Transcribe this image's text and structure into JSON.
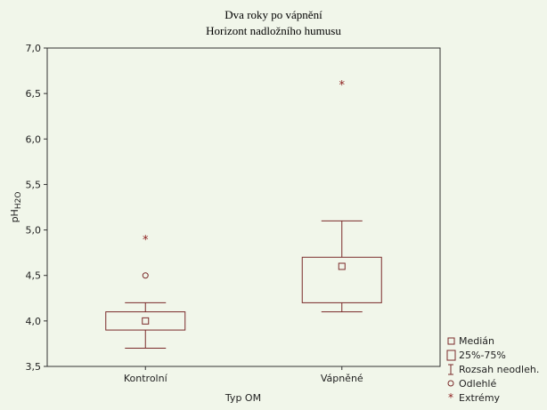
{
  "chart_data": {
    "type": "box",
    "title_line1": "Dva roky po vápnění",
    "title_line2": "Horizont nadložního humusu",
    "ylabel": {
      "base": "pH",
      "sub": "H2O"
    },
    "xlabel": "Typ OM",
    "ylim": [
      3.5,
      7.0
    ],
    "yticks": [
      3.5,
      4.0,
      4.5,
      5.0,
      5.5,
      6.0,
      6.5,
      7.0
    ],
    "ytick_labels": [
      "3,5",
      "4,0",
      "4,5",
      "5,0",
      "5,5",
      "6,0",
      "6,5",
      "7,0"
    ],
    "categories": [
      "Kontrolní",
      "Vápněné"
    ],
    "boxes": [
      {
        "category": "Kontrolní",
        "median": 4.0,
        "q1": 3.9,
        "q3": 4.1,
        "whisker_low": 3.7,
        "whisker_high": 4.2,
        "outliers": [
          4.5
        ],
        "extremes": [
          4.9
        ]
      },
      {
        "category": "Vápněné",
        "median": 4.6,
        "q1": 4.2,
        "q3": 4.7,
        "whisker_low": 4.1,
        "whisker_high": 5.1,
        "outliers": [],
        "extremes": [
          6.6
        ]
      }
    ],
    "legend": [
      "Medián",
      "25%-75%",
      "Rozsah neodleh.",
      "Odlehlé",
      "Extrémy"
    ],
    "legend_position": "bottom-right",
    "grid": false,
    "color": "#7a2a2a",
    "extreme_color": "#8b1a1a"
  }
}
